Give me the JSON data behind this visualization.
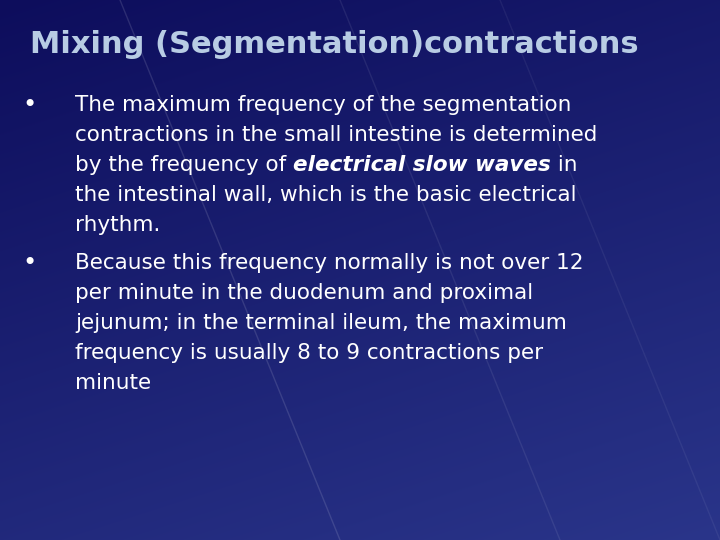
{
  "title": "Mixing (Segmentation)contractions",
  "title_color": "#b8cce4",
  "title_fontsize": 22,
  "background_color": "#1a1a6e",
  "background_color2": "#2e3f8f",
  "text_color": "#ffffff",
  "bullet_fontsize": 15.5,
  "bullet1_lines": [
    "The maximum frequency of the segmentation",
    "contractions in the small intestine is determined",
    "MIXED:by the frequency of |electrical slow waves| in",
    "the intestinal wall, which is the basic electrical",
    "rhythm."
  ],
  "bullet2_lines": [
    "Because this frequency normally is not over 12",
    "per minute in the duodenum and proximal",
    "jejunum; in the terminal ileum, the maximum",
    "frequency is usually 8 to 9 contractions per",
    "minute"
  ]
}
